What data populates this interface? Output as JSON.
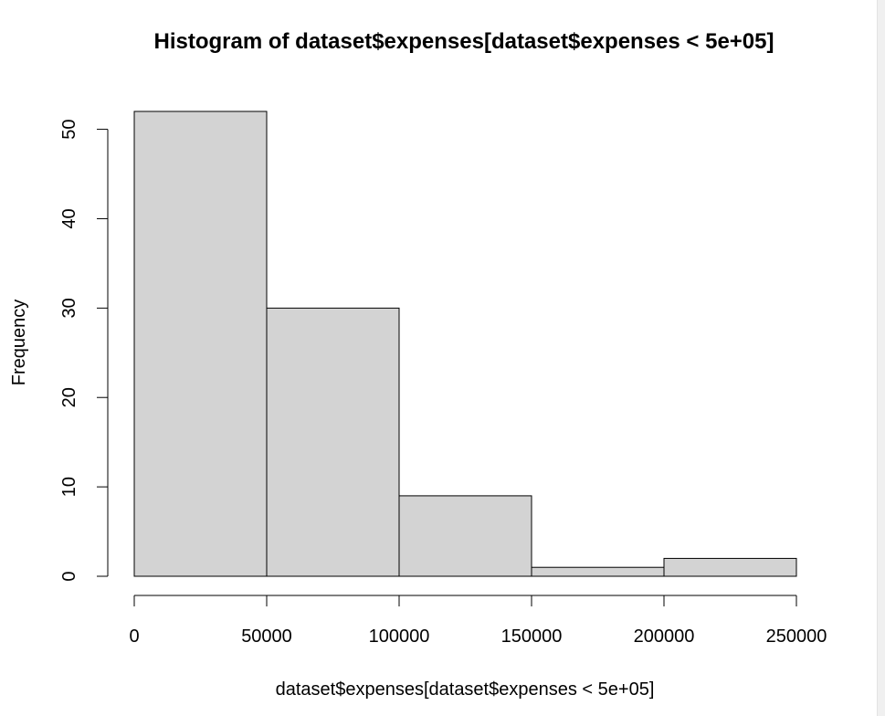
{
  "chart_data": {
    "type": "histogram",
    "title": "Histogram of dataset$expenses[dataset$expenses < 5e+05]",
    "xlabel": "dataset$expenses[dataset$expenses < 5e+05]",
    "ylabel": "Frequency",
    "bins": [
      {
        "start": 0,
        "end": 50000,
        "count": 52
      },
      {
        "start": 50000,
        "end": 100000,
        "count": 30
      },
      {
        "start": 100000,
        "end": 150000,
        "count": 9
      },
      {
        "start": 150000,
        "end": 200000,
        "count": 1
      },
      {
        "start": 200000,
        "end": 250000,
        "count": 2
      }
    ],
    "xlim": [
      0,
      250000
    ],
    "ylim": [
      0,
      52
    ],
    "xticks": [
      0,
      50000,
      100000,
      150000,
      200000,
      250000
    ],
    "xtick_labels": [
      "0",
      "50000",
      "100000",
      "150000",
      "200000",
      "250000"
    ],
    "yticks": [
      0,
      10,
      20,
      30,
      40,
      50
    ],
    "ytick_labels": [
      "0",
      "10",
      "20",
      "30",
      "40",
      "50"
    ],
    "bar_fill": "#d3d3d3",
    "bar_stroke": "#000000"
  }
}
